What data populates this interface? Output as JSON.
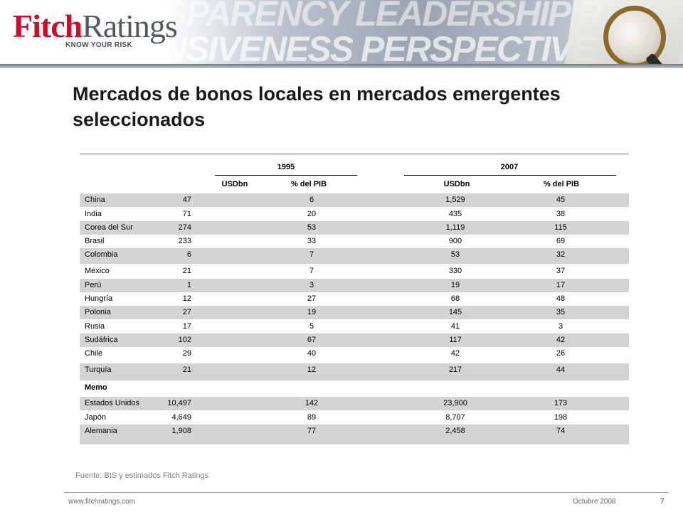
{
  "header": {
    "logo_fitch": "Fitch",
    "logo_ratings": "Ratings",
    "logo_tagline": "KNOW YOUR RISK",
    "banner_line1": "SPARENCY LEADERSHIP RESPONSIVENESS",
    "banner_line2": "ONSIVENESS PERSPECTIVE TRANSPARENCY L"
  },
  "title": "Mercados de bonos locales en mercados emergentes seleccionados",
  "table": {
    "year1": "1995",
    "year2": "2007",
    "col_usd": "USDbn",
    "col_pib": "% del PIB",
    "rows": [
      {
        "name": "China",
        "usd95": "47",
        "pib95": "6",
        "usd07": "1,529",
        "pib07": "45"
      },
      {
        "name": "India",
        "usd95": "71",
        "pib95": "20",
        "usd07": "435",
        "pib07": "38"
      },
      {
        "name": "Corea del Sur",
        "usd95": "274",
        "pib95": "53",
        "usd07": "1,119",
        "pib07": "115"
      },
      {
        "name": "Brasil",
        "usd95": "233",
        "pib95": "33",
        "usd07": "900",
        "pib07": "69"
      },
      {
        "name": "Colombia",
        "usd95": "6",
        "pib95": "7",
        "usd07": "53",
        "pib07": "32"
      },
      {
        "name": "México",
        "usd95": "21",
        "pib95": "7",
        "usd07": "330",
        "pib07": "37"
      },
      {
        "name": "Perú",
        "usd95": "1",
        "pib95": "3",
        "usd07": "19",
        "pib07": "17"
      },
      {
        "name": "Hungría",
        "usd95": "12",
        "pib95": "27",
        "usd07": "68",
        "pib07": "48"
      },
      {
        "name": "Polonia",
        "usd95": "27",
        "pib95": "19",
        "usd07": "145",
        "pib07": "35"
      },
      {
        "name": "Rusia",
        "usd95": "17",
        "pib95": "5",
        "usd07": "41",
        "pib07": "3"
      },
      {
        "name": "Sudáfrica",
        "usd95": "102",
        "pib95": "67",
        "usd07": "117",
        "pib07": "42"
      },
      {
        "name": "Chile",
        "usd95": "29",
        "pib95": "40",
        "usd07": "42",
        "pib07": "26"
      },
      {
        "name": "Turquía",
        "usd95": "21",
        "pib95": "12",
        "usd07": "217",
        "pib07": "44"
      },
      {
        "name": "Memo",
        "usd95": "",
        "pib95": "",
        "usd07": "",
        "pib07": ""
      },
      {
        "name": "Estados Unidos",
        "usd95": "10,497",
        "pib95": "142",
        "usd07": "23,900",
        "pib07": "173"
      },
      {
        "name": "Japón",
        "usd95": "4,649",
        "pib95": "89",
        "usd07": "8,707",
        "pib07": "198"
      },
      {
        "name": "Alemania",
        "usd95": "1,908",
        "pib95": "77",
        "usd07": "2,458",
        "pib07": "74"
      }
    ]
  },
  "source": "Fuente: BIS y estimados Fitch Ratings",
  "footer": {
    "url": "www.fitchratings.com",
    "date": "Octubre 2008",
    "page": "7"
  },
  "colors": {
    "brand_red": "#c8102e",
    "row_shade": "#d4d4d4"
  }
}
